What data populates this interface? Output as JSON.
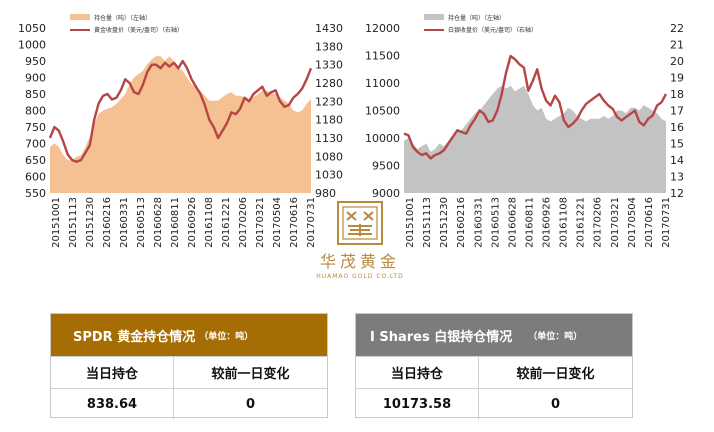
{
  "chart_data": [
    {
      "type": "area+line",
      "legend": [
        "持仓量（吨）（左轴）",
        "黄金收盘价（美元/盎司）（右轴）"
      ],
      "legend_placement": "top-left",
      "x_tick_labels": [
        "20151001",
        "20151113",
        "20151230",
        "20160216",
        "20160331",
        "20160513",
        "20160628",
        "20160811",
        "20160926",
        "20161108",
        "20161221",
        "20170206",
        "20170321",
        "20170504",
        "20170616",
        "20170731"
      ],
      "y_left_ticks": [
        550,
        600,
        650,
        700,
        750,
        800,
        850,
        900,
        950,
        1000,
        1050
      ],
      "y_right_ticks": [
        980,
        1030,
        1080,
        1130,
        1180,
        1230,
        1280,
        1330,
        1380,
        1430
      ],
      "ylim_left": [
        550,
        1050
      ],
      "ylim_right": [
        980,
        1430
      ],
      "series": [
        {
          "name": "持仓量（吨）（左轴）",
          "axis": "left",
          "style": "area",
          "values": [
            690,
            700,
            690,
            665,
            650,
            648,
            660,
            665,
            690,
            720,
            760,
            790,
            800,
            805,
            810,
            820,
            835,
            850,
            880,
            900,
            910,
            920,
            940,
            955,
            965,
            965,
            950,
            965,
            950,
            930,
            920,
            900,
            880,
            870,
            860,
            845,
            830,
            830,
            830,
            840,
            850,
            855,
            845,
            845,
            840,
            835,
            840,
            850,
            860,
            860,
            855,
            850,
            840,
            830,
            820,
            800,
            795,
            800,
            820,
            835
          ]
        },
        {
          "name": "黄金收盘价（美元/盎司）（右轴）",
          "axis": "right",
          "style": "line",
          "values": [
            1130,
            1160,
            1150,
            1120,
            1085,
            1070,
            1065,
            1070,
            1090,
            1110,
            1180,
            1225,
            1245,
            1250,
            1235,
            1240,
            1260,
            1290,
            1280,
            1255,
            1250,
            1275,
            1310,
            1330,
            1330,
            1320,
            1335,
            1325,
            1335,
            1320,
            1340,
            1320,
            1290,
            1270,
            1250,
            1220,
            1180,
            1160,
            1130,
            1150,
            1170,
            1200,
            1195,
            1210,
            1240,
            1230,
            1250,
            1260,
            1270,
            1245,
            1255,
            1260,
            1230,
            1215,
            1220,
            1240,
            1250,
            1265,
            1290,
            1320
          ]
        }
      ]
    },
    {
      "type": "area+line",
      "legend": [
        "持仓量（吨）（左轴）",
        "白银收盘价（美元/盎司）（右轴）"
      ],
      "legend_placement": "top-left",
      "x_tick_labels": [
        "20151001",
        "20151113",
        "20151230",
        "20160216",
        "20160331",
        "20160513",
        "20160628",
        "20160811",
        "20160926",
        "20161108",
        "20161221",
        "20170206",
        "20170321",
        "20170504",
        "20170616",
        "20170731"
      ],
      "y_left_ticks": [
        9000,
        9500,
        10000,
        10500,
        11000,
        11500,
        12000
      ],
      "y_right_ticks": [
        12,
        13,
        14,
        15,
        16,
        17,
        18,
        19,
        20,
        21,
        22
      ],
      "ylim_left": [
        9000,
        12000
      ],
      "ylim_right": [
        12,
        22
      ],
      "series": [
        {
          "name": "持仓量（吨）（左轴）",
          "axis": "left",
          "style": "area",
          "values": [
            9950,
            10000,
            9900,
            9800,
            9850,
            9900,
            9750,
            9800,
            9900,
            9850,
            9950,
            10050,
            10100,
            10150,
            10250,
            10350,
            10450,
            10500,
            10600,
            10700,
            10800,
            10900,
            10950,
            10900,
            10950,
            10850,
            10900,
            10950,
            10800,
            10600,
            10500,
            10550,
            10350,
            10300,
            10350,
            10400,
            10450,
            10550,
            10500,
            10400,
            10350,
            10300,
            10350,
            10350,
            10350,
            10400,
            10350,
            10400,
            10500,
            10500,
            10450,
            10550,
            10550,
            10500,
            10600,
            10550,
            10500,
            10450,
            10350,
            10300
          ]
        },
        {
          "name": "白银收盘价（美元/盎司）（右轴）",
          "axis": "right",
          "style": "line",
          "values": [
            15.6,
            15.5,
            14.8,
            14.5,
            14.3,
            14.4,
            14.1,
            14.3,
            14.4,
            14.6,
            15.0,
            15.4,
            15.8,
            15.7,
            15.6,
            16.1,
            16.5,
            17.0,
            16.8,
            16.3,
            16.4,
            17.0,
            18.0,
            19.3,
            20.3,
            20.1,
            19.8,
            19.6,
            18.2,
            18.8,
            19.5,
            18.3,
            17.6,
            17.3,
            17.9,
            17.5,
            16.4,
            16.0,
            16.2,
            16.5,
            17.0,
            17.4,
            17.6,
            17.8,
            18.0,
            17.6,
            17.3,
            17.1,
            16.6,
            16.4,
            16.6,
            16.8,
            17.0,
            16.3,
            16.1,
            16.5,
            16.7,
            17.3,
            17.5,
            18.0
          ]
        }
      ]
    }
  ],
  "logo": {
    "chinese": "华茂黄金",
    "english": "HUAMAO GOLD CO.LTD"
  },
  "spdr_table": {
    "title": "SPDR 黄金持仓情况",
    "unit": "（单位：吨）",
    "header_col1": "当日持仓",
    "header_col2": "较前一日变化",
    "value_col1": "838.64",
    "value_col2": "0",
    "header_color": "#a66d05"
  },
  "ishares_table": {
    "title": "I Shares 白银持仓情况",
    "unit": "（单位：吨）",
    "header_col1": "当日持仓",
    "header_col2": "较前一日变化",
    "value_col1": "10173.58",
    "value_col2": "0",
    "header_color": "#7c7c7c"
  },
  "colors": {
    "gold_area": "#f6c192",
    "silver_area": "#c3c3c3",
    "price_line": "#b64646"
  }
}
